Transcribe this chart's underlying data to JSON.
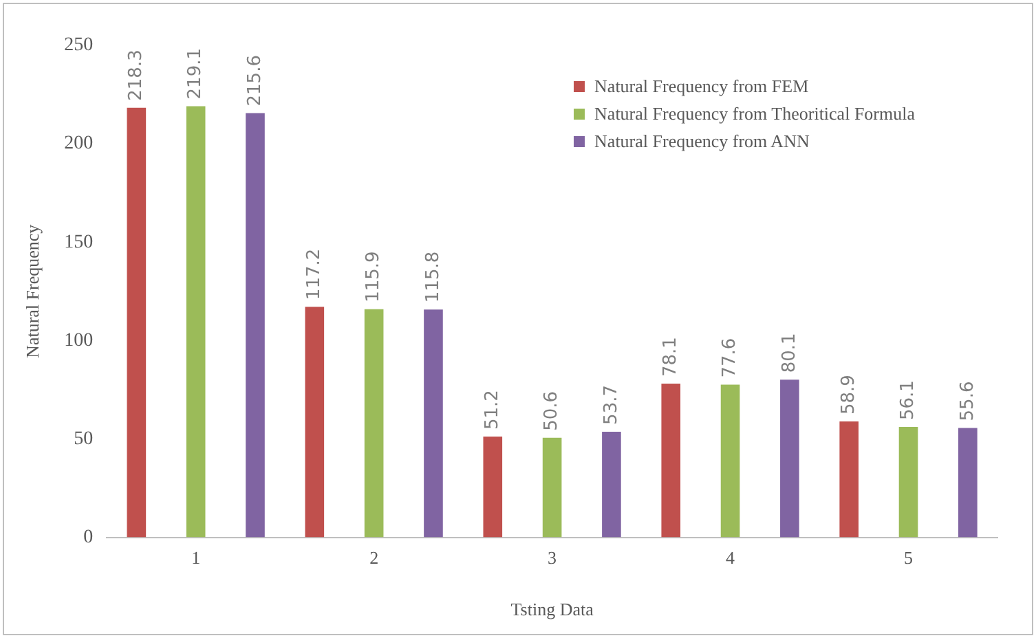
{
  "chart_data": {
    "type": "bar",
    "xlabel": "Tsting Data",
    "ylabel": "Natural Frequency",
    "categories": [
      "1",
      "2",
      "3",
      "4",
      "5"
    ],
    "series": [
      {
        "name": "Natural Frequency from FEM",
        "color": "#c0504d",
        "values": [
          218.3,
          117.2,
          51.2,
          78.1,
          58.9
        ]
      },
      {
        "name": "Natural Frequency from Theoritical Formula",
        "color": "#9bbb59",
        "values": [
          219.1,
          115.9,
          50.6,
          77.6,
          56.1
        ]
      },
      {
        "name": "Natural Frequency from ANN",
        "color": "#8064a2",
        "values": [
          215.6,
          115.8,
          53.7,
          80.1,
          55.6
        ]
      }
    ],
    "ylim": [
      0,
      250
    ],
    "yticks": [
      0,
      50,
      100,
      150,
      200,
      250
    ],
    "grid": false,
    "legend": "top right",
    "data_labels": true
  }
}
